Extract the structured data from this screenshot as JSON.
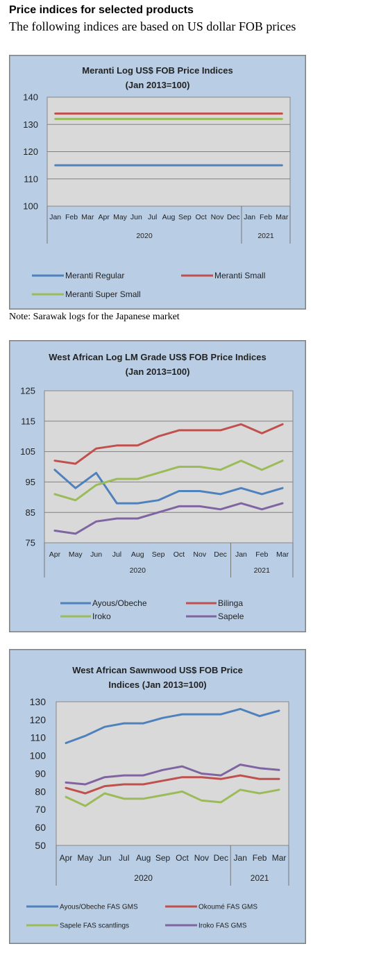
{
  "header": {
    "title": "Price indices for selected products",
    "subtitle": "The following indices are based on US dollar FOB prices"
  },
  "note": "Note: Sarawak logs for the Japanese market",
  "chart_data": [
    {
      "type": "line",
      "title_lines": [
        "Meranti Log US$ FOB Price Indices",
        "(Jan 2013=100)"
      ],
      "categories": [
        "Jan",
        "Feb",
        "Mar",
        "Apr",
        "May",
        "Jun",
        "Jul",
        "Aug",
        "Sep",
        "Oct",
        "Nov",
        "Dec",
        "Jan",
        "Feb",
        "Mar"
      ],
      "year_groups": [
        {
          "label": "2020",
          "count": 12
        },
        {
          "label": "2021",
          "count": 3
        }
      ],
      "ylim": [
        100,
        140
      ],
      "yticks": [
        100,
        110,
        120,
        130,
        140
      ],
      "grid": true,
      "legend": "bottom",
      "series": [
        {
          "name": "Meranti Regular",
          "color": "#4f81bd",
          "values": [
            115,
            115,
            115,
            115,
            115,
            115,
            115,
            115,
            115,
            115,
            115,
            115,
            115,
            115,
            115
          ]
        },
        {
          "name": "Meranti Small",
          "color": "#c0504d",
          "values": [
            134,
            134,
            134,
            134,
            134,
            134,
            134,
            134,
            134,
            134,
            134,
            134,
            134,
            134,
            134
          ]
        },
        {
          "name": "Meranti Super Small",
          "color": "#9bbb59",
          "values": [
            132,
            132,
            132,
            132,
            132,
            132,
            132,
            132,
            132,
            132,
            132,
            132,
            132,
            132,
            132
          ]
        }
      ]
    },
    {
      "type": "line",
      "title_lines": [
        "West African Log LM Grade US$ FOB Price Indices",
        "(Jan 2013=100)"
      ],
      "categories": [
        "Apr",
        "May",
        "Jun",
        "Jul",
        "Aug",
        "Sep",
        "Oct",
        "Nov",
        "Dec",
        "Jan",
        "Feb",
        "Mar"
      ],
      "year_groups": [
        {
          "label": "2020",
          "count": 9
        },
        {
          "label": "2021",
          "count": 3
        }
      ],
      "ylim": [
        75,
        125
      ],
      "yticks": [
        75,
        85,
        95,
        105,
        115,
        125
      ],
      "grid": true,
      "legend": "bottom",
      "series": [
        {
          "name": "Ayous/Obeche",
          "color": "#4f81bd",
          "values": [
            99,
            93,
            98,
            88,
            88,
            89,
            92,
            92,
            91,
            93,
            91,
            93
          ]
        },
        {
          "name": "Bilinga",
          "color": "#c0504d",
          "values": [
            102,
            101,
            106,
            107,
            107,
            110,
            112,
            112,
            112,
            114,
            111,
            114
          ]
        },
        {
          "name": "Iroko",
          "color": "#9bbb59",
          "values": [
            91,
            89,
            94,
            96,
            96,
            98,
            100,
            100,
            99,
            102,
            99,
            102
          ]
        },
        {
          "name": "Sapele",
          "color": "#8064a2",
          "values": [
            79,
            78,
            82,
            83,
            83,
            85,
            87,
            87,
            86,
            88,
            86,
            88
          ]
        }
      ]
    },
    {
      "type": "line",
      "title_lines": [
        "West African Sawnwood US$ FOB Price",
        "Indices (Jan 2013=100)"
      ],
      "categories": [
        "Apr",
        "May",
        "Jun",
        "Jul",
        "Aug",
        "Sep",
        "Oct",
        "Nov",
        "Dec",
        "Jan",
        "Feb",
        "Mar"
      ],
      "year_groups": [
        {
          "label": "2020",
          "count": 9
        },
        {
          "label": "2021",
          "count": 3
        }
      ],
      "ylim": [
        50,
        130
      ],
      "yticks": [
        50,
        60,
        70,
        80,
        90,
        100,
        110,
        120,
        130
      ],
      "grid": false,
      "legend": "bottom",
      "series": [
        {
          "name": "Ayous/Obeche FAS GMS",
          "color": "#4f81bd",
          "values": [
            107,
            111,
            116,
            118,
            118,
            121,
            123,
            123,
            123,
            126,
            122,
            125
          ]
        },
        {
          "name": "Okoumé FAS GMS",
          "color": "#c0504d",
          "values": [
            82,
            79,
            83,
            84,
            84,
            86,
            88,
            88,
            87,
            89,
            87,
            87
          ]
        },
        {
          "name": "Sapele FAS scantlings",
          "color": "#9bbb59",
          "values": [
            77,
            72,
            79,
            76,
            76,
            78,
            80,
            75,
            74,
            81,
            79,
            81
          ]
        },
        {
          "name": "Iroko FAS GMS",
          "color": "#8064a2",
          "values": [
            85,
            84,
            88,
            89,
            89,
            92,
            94,
            90,
            89,
            95,
            93,
            92
          ]
        }
      ]
    }
  ]
}
